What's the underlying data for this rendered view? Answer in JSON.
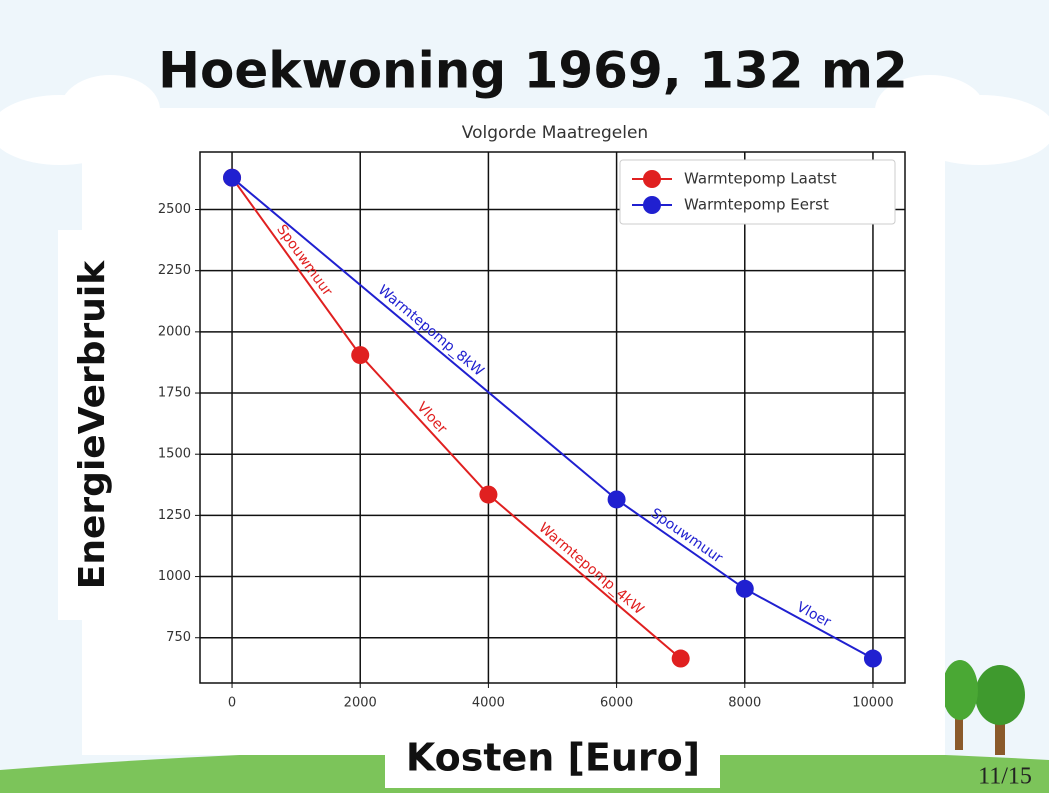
{
  "slide": {
    "title": "Hoekwoning 1969, 132 m2",
    "page": "11/15"
  },
  "chart_data": {
    "type": "line",
    "title": "Volgorde Maatregelen",
    "x_label": "Kosten [Euro]",
    "y_label": "EnergieVerbruik",
    "xlim": [
      -500,
      10500
    ],
    "xticks": [
      0,
      2000,
      4000,
      6000,
      8000,
      10000
    ],
    "ylim": [
      565,
      2735
    ],
    "yticks": [
      750,
      1000,
      1250,
      1500,
      1750,
      2000,
      2250,
      2500
    ],
    "grid": true,
    "legend": "upper right",
    "series": [
      {
        "name": "Warmtepomp Laatst",
        "color": "#e02020",
        "x": [
          0,
          2000,
          4000,
          7000
        ],
        "values": [
          2630,
          1905,
          1335,
          665
        ],
        "segment_labels": [
          "Spouwmuur",
          "Vloer",
          "Warmtepomp_4kW"
        ]
      },
      {
        "name": "Warmtepomp Eerst",
        "color": "#2020d0",
        "x": [
          0,
          6000,
          8000,
          10000
        ],
        "values": [
          2630,
          1315,
          950,
          665
        ],
        "segment_labels": [
          "Warmtepomp_8kW",
          "Spouwmuur",
          "Vloer"
        ]
      }
    ]
  }
}
